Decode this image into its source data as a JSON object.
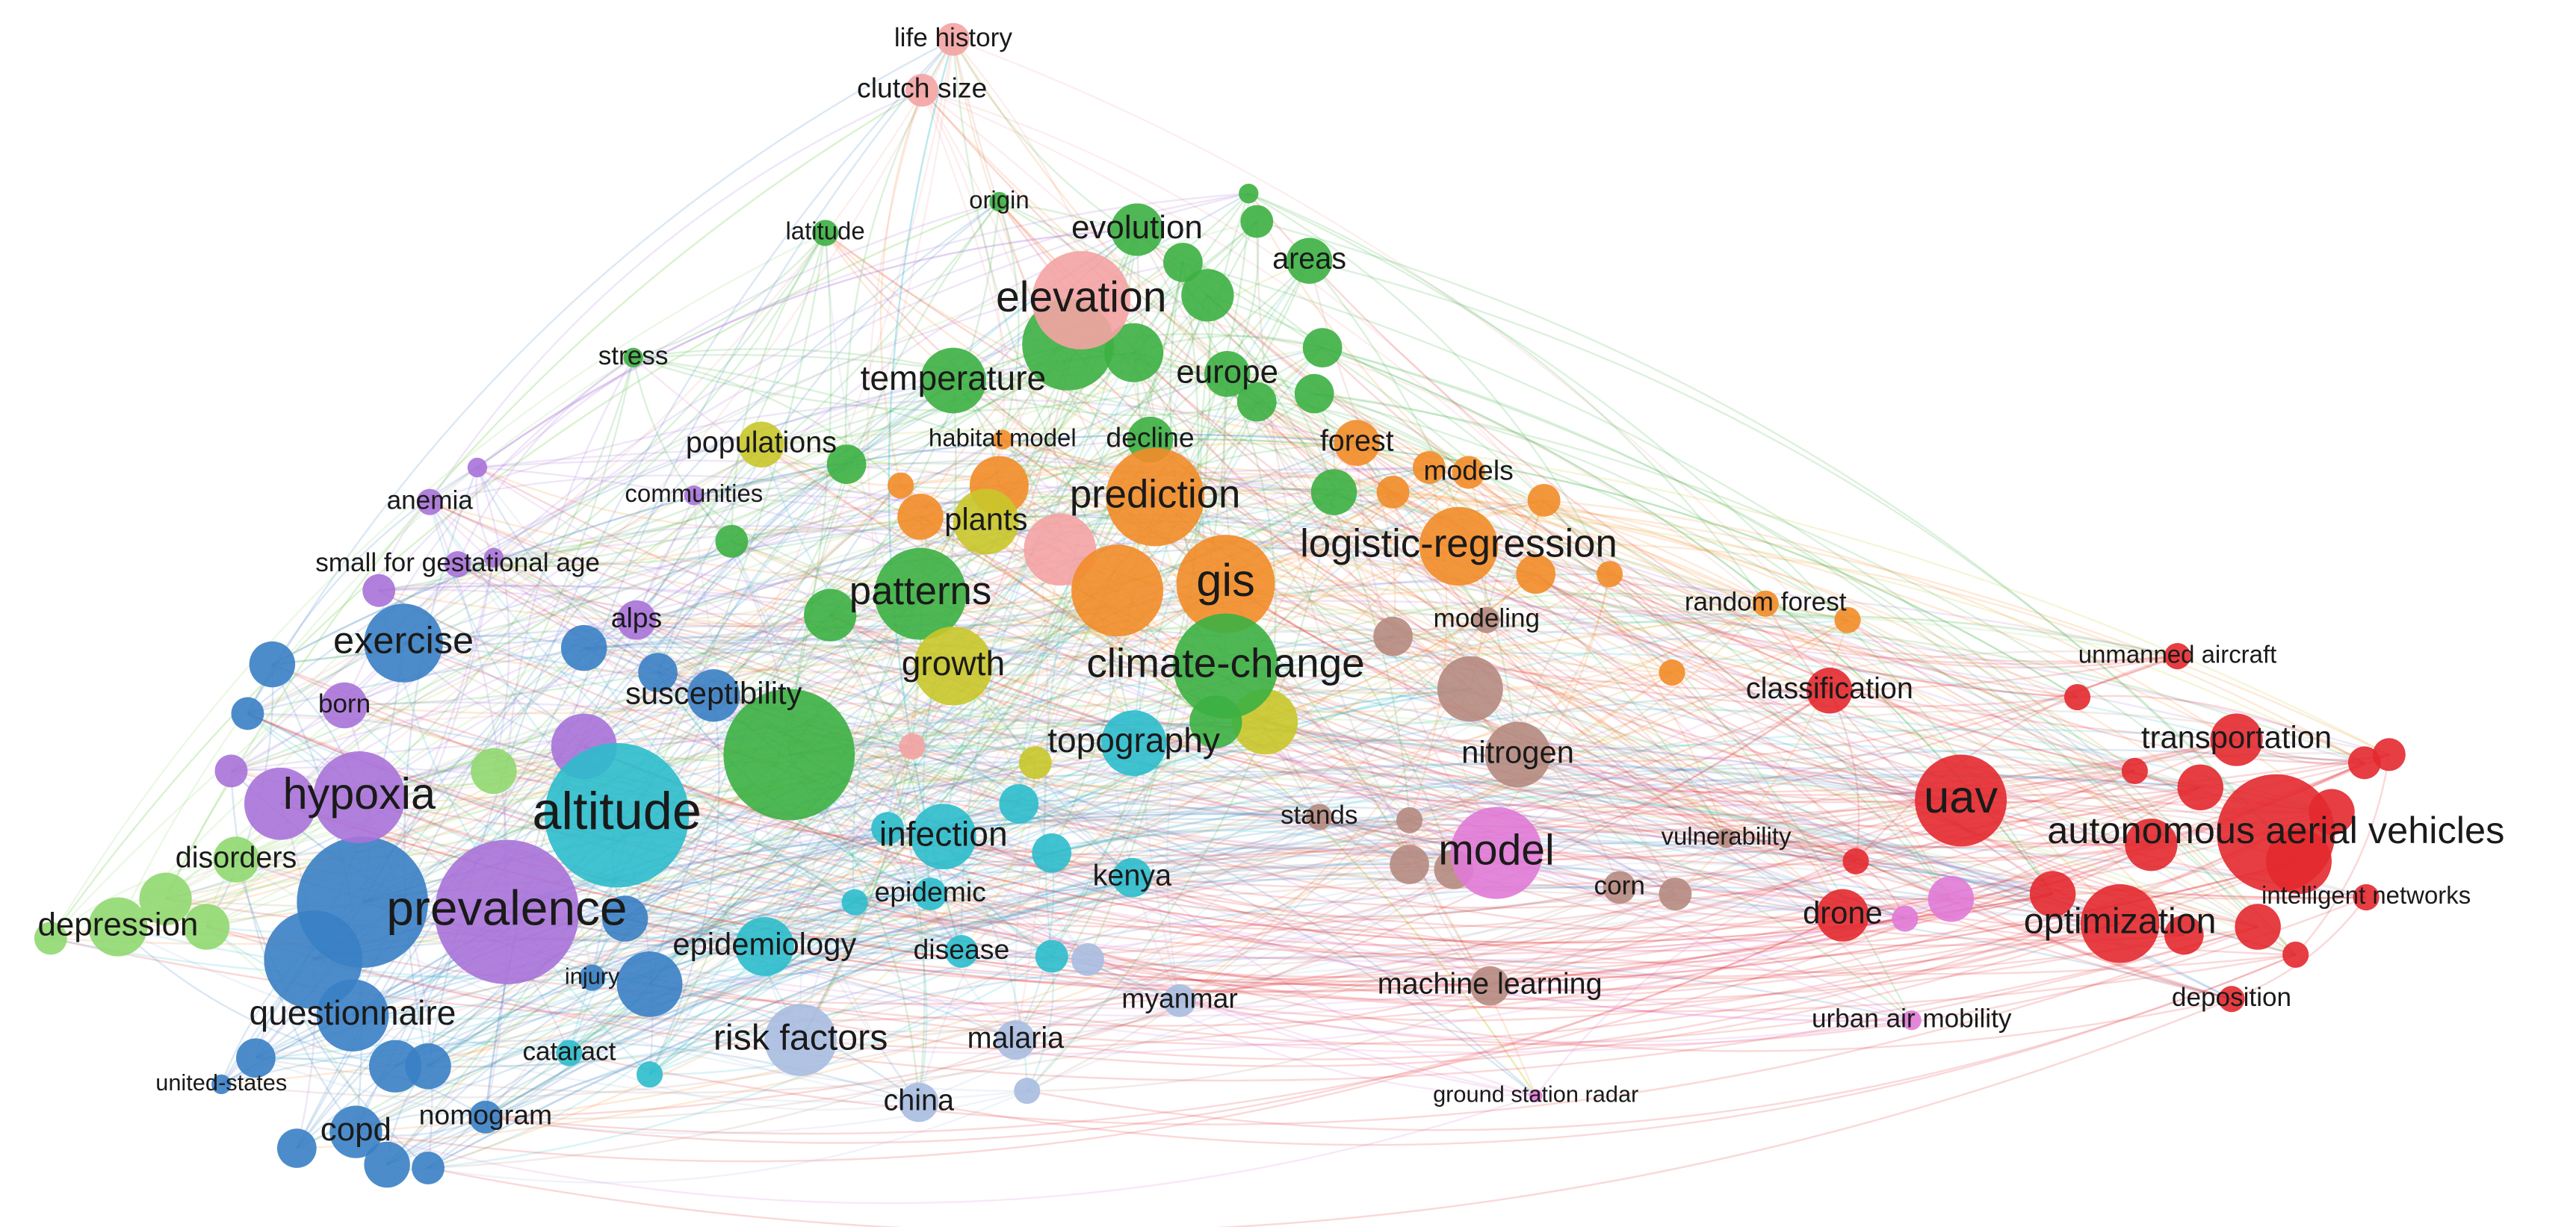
{
  "nodes": [
    {
      "label": "life history",
      "color": "#f4a3a3"
    },
    {
      "label": "clutch size",
      "color": "#f4a3a3"
    },
    {
      "label": "origin",
      "color": "#3cb043"
    },
    {
      "label": "latitude",
      "color": "#3cb043"
    },
    {
      "label": "evolution",
      "color": "#3cb043"
    },
    {
      "label": "areas",
      "color": "#3cb043"
    },
    {
      "label": "elevation",
      "color": "#f4a3a3"
    },
    {
      "label": "stress",
      "color": "#3cb043"
    },
    {
      "label": "temperature",
      "color": "#3cb043"
    },
    {
      "label": "europe",
      "color": "#3cb043"
    },
    {
      "label": "populations",
      "color": "#c9c72a"
    },
    {
      "label": "habitat model",
      "color": "#f28c28"
    },
    {
      "label": "decline",
      "color": "#3cb043"
    },
    {
      "label": "forest",
      "color": "#f28c28"
    },
    {
      "label": "models",
      "color": "#f28c28"
    },
    {
      "label": "anemia",
      "color": "#a872d8"
    },
    {
      "label": "communities",
      "color": "#a872d8"
    },
    {
      "label": "prediction",
      "color": "#f28c28"
    },
    {
      "label": "plants",
      "color": "#c9c72a"
    },
    {
      "label": "logistic-regression",
      "color": "#f28c28"
    },
    {
      "label": "small for gestational age",
      "color": "#a872d8"
    },
    {
      "label": "gis",
      "color": "#f28c28"
    },
    {
      "label": "patterns",
      "color": "#3cb043"
    },
    {
      "label": "random forest",
      "color": "#f28c28"
    },
    {
      "label": "modeling",
      "color": "#b58a80"
    },
    {
      "label": "alps",
      "color": "#a872d8"
    },
    {
      "label": "exercise",
      "color": "#3a7fc4"
    },
    {
      "label": "unmanned aircraft",
      "color": "#e3292f"
    },
    {
      "label": "growth",
      "color": "#c9c72a"
    },
    {
      "label": "climate-change",
      "color": "#3cb043"
    },
    {
      "label": "susceptibility",
      "color": "#3a7fc4"
    },
    {
      "label": "classification",
      "color": "#e3292f"
    },
    {
      "label": "born",
      "color": "#a872d8"
    },
    {
      "label": "transportation",
      "color": "#e3292f"
    },
    {
      "label": "topography",
      "color": "#2cbccc"
    },
    {
      "label": "nitrogen",
      "color": "#b58a80"
    },
    {
      "label": "hypoxia",
      "color": "#a872d8"
    },
    {
      "label": "uav",
      "color": "#e3292f"
    },
    {
      "label": "stands",
      "color": "#b58a80"
    },
    {
      "label": "altitude",
      "color": "#2cbccc"
    },
    {
      "label": "vulnerability",
      "color": "#b58a80"
    },
    {
      "label": "infection",
      "color": "#2cbccc"
    },
    {
      "label": "autonomous aerial vehicles",
      "color": "#e3292f"
    },
    {
      "label": "model",
      "color": "#e07ad6"
    },
    {
      "label": "disorders",
      "color": "#90d870"
    },
    {
      "label": "corn",
      "color": "#b58a80"
    },
    {
      "label": "kenya",
      "color": "#2cbccc"
    },
    {
      "label": "epidemic",
      "color": "#2cbccc"
    },
    {
      "label": "intelligent networks",
      "color": "#e3292f"
    },
    {
      "label": "drone",
      "color": "#e3292f"
    },
    {
      "label": "prevalence",
      "color": "#a872d8"
    },
    {
      "label": "depression",
      "color": "#90d870"
    },
    {
      "label": "optimization",
      "color": "#e3292f"
    },
    {
      "label": "epidemiology",
      "color": "#2cbccc"
    },
    {
      "label": "disease",
      "color": "#2cbccc"
    },
    {
      "label": "injury",
      "color": "#3a7fc4"
    },
    {
      "label": "machine learning",
      "color": "#b58a80"
    },
    {
      "label": "deposition",
      "color": "#e3292f"
    },
    {
      "label": "myanmar",
      "color": "#a8bce0"
    },
    {
      "label": "questionnaire",
      "color": "#3a7fc4"
    },
    {
      "label": "urban air mobility",
      "color": "#e07ad6"
    },
    {
      "label": "risk factors",
      "color": "#a8bce0"
    },
    {
      "label": "malaria",
      "color": "#a8bce0"
    },
    {
      "label": "cataract",
      "color": "#2cbccc"
    },
    {
      "label": "united-states",
      "color": "#3a7fc4"
    },
    {
      "label": "china",
      "color": "#a8bce0"
    },
    {
      "label": "ground station radar",
      "color": "#e07ad6"
    },
    {
      "label": "nomogram",
      "color": "#3a7fc4"
    },
    {
      "label": "copd",
      "color": "#3a7fc4"
    }
  ]
}
